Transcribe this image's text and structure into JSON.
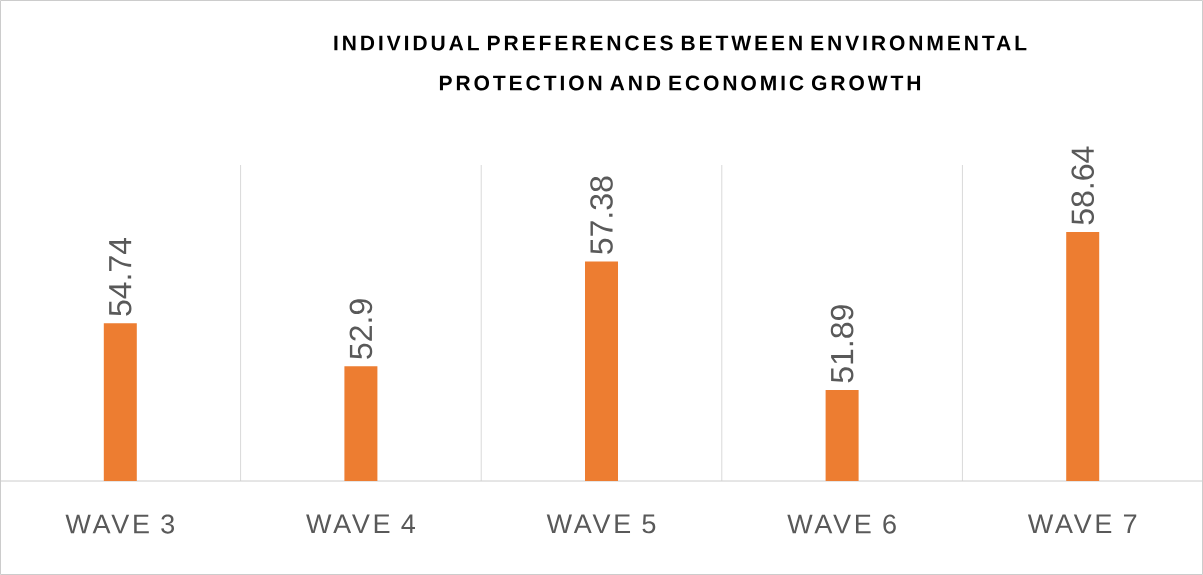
{
  "chart_data": {
    "type": "bar",
    "title": "INDIVIDUAL PREFERENCES BETWEEN ENVIRONMENTAL PROTECTION AND ECONOMIC GROWTH",
    "categories": [
      "WAVE 3",
      "WAVE 4",
      "WAVE 5",
      "WAVE 6",
      "WAVE 7"
    ],
    "values": [
      54.74,
      52.9,
      57.38,
      51.89,
      58.64
    ],
    "color": "#ed7d31",
    "ylim": [
      48,
      61.5
    ],
    "data_labels": true,
    "grid": "x"
  }
}
